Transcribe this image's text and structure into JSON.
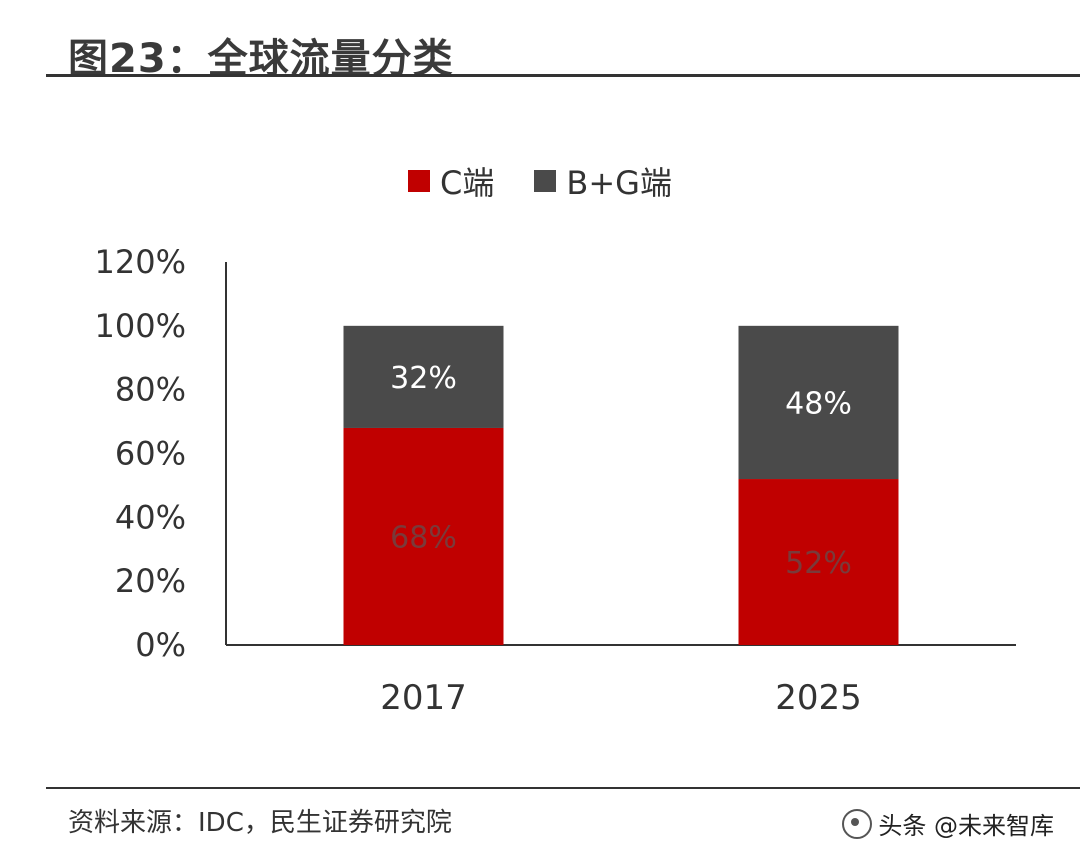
{
  "figure": {
    "title": "图23：全球流量分类",
    "source": "资料来源：IDC，民生证券研究院",
    "watermark": "头条 @未来智库"
  },
  "chart_data": {
    "type": "bar",
    "stacked": true,
    "categories": [
      "2017",
      "2025"
    ],
    "series": [
      {
        "name": "C端",
        "color": "#c00000",
        "values": [
          68,
          52
        ],
        "labels": [
          "68%",
          "52%"
        ],
        "label_color": "#7a3a3a"
      },
      {
        "name": "B+G端",
        "color": "#4a4a4a",
        "values": [
          32,
          48
        ],
        "labels": [
          "32%",
          "48%"
        ],
        "label_color": "#ffffff"
      }
    ],
    "ylim": [
      0,
      120
    ],
    "yticks": [
      0,
      20,
      40,
      60,
      80,
      100,
      120
    ],
    "ytick_labels": [
      "0%",
      "20%",
      "40%",
      "60%",
      "80%",
      "100%",
      "120%"
    ],
    "xlabel": "",
    "ylabel": "",
    "legend_position": "top-center",
    "grid": false
  }
}
